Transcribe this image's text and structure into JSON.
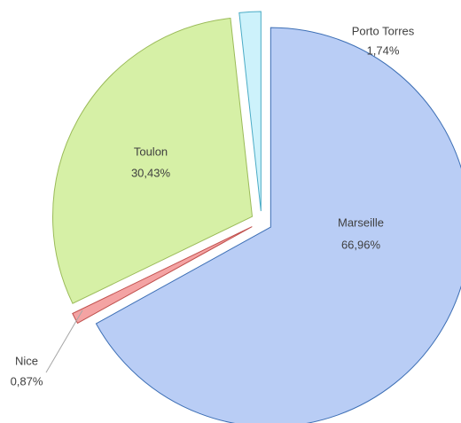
{
  "chart_data": {
    "type": "pie",
    "categories": [
      "Marseille",
      "Nice",
      "Toulon",
      "Porto Torres"
    ],
    "values": [
      66.96,
      0.87,
      30.43,
      1.74
    ],
    "value_labels": [
      "66,96%",
      "0,87%",
      "30,43%",
      "1,74%"
    ],
    "colors": [
      "#b9cdf5",
      "#f4a3a3",
      "#d6f0a6",
      "#cdf2fb"
    ],
    "edge_colors": [
      "#3d6fb5",
      "#c0504d",
      "#9bbb59",
      "#4bacc6"
    ]
  }
}
